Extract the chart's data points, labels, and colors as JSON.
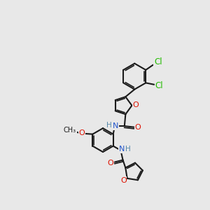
{
  "bg": "#e8e8e8",
  "bc": "#1a1a1a",
  "colors": {
    "C": "#1a1a1a",
    "N": "#2255cc",
    "O": "#dd1100",
    "Cl": "#22bb00",
    "H": "#5588aa"
  },
  "figsize": [
    3.0,
    3.0
  ],
  "dpi": 100
}
